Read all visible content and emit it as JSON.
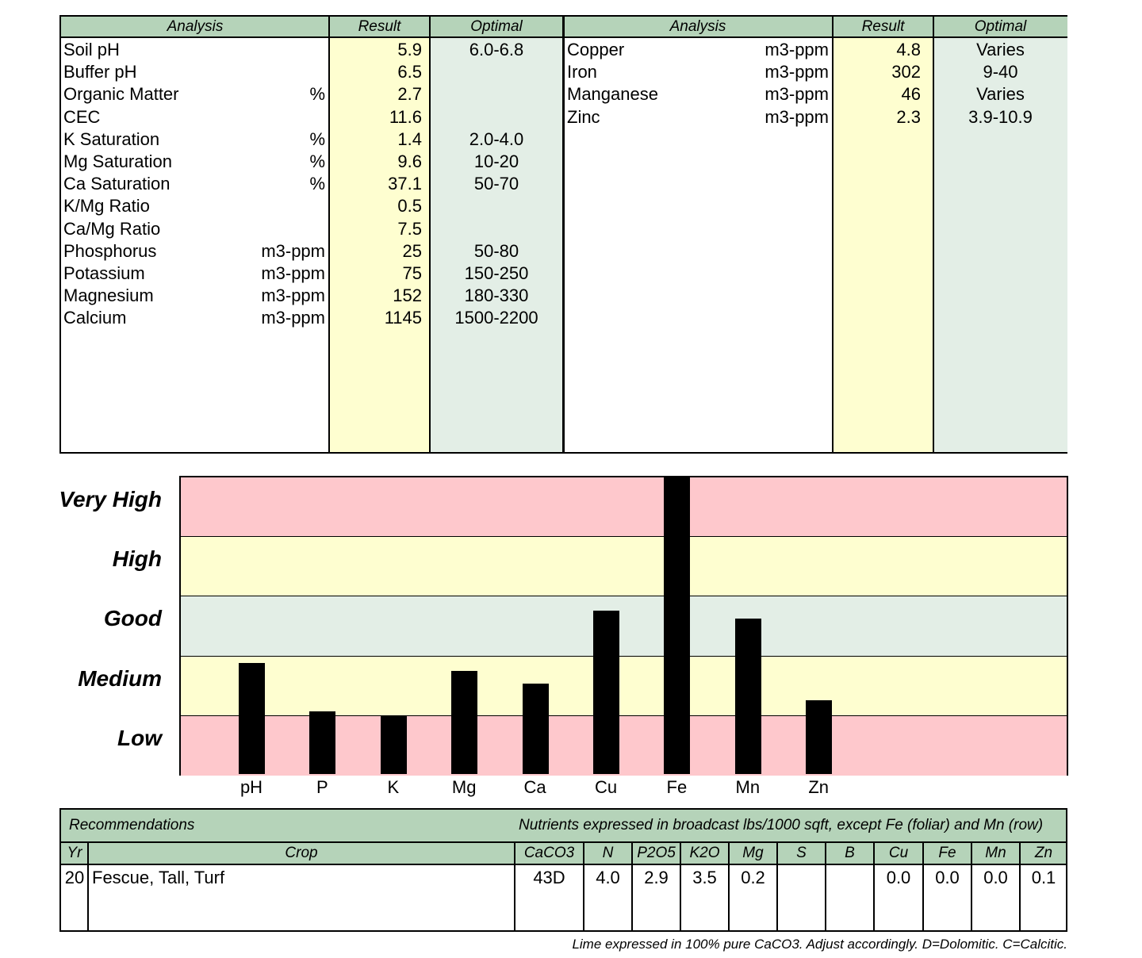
{
  "top_table": {
    "headers": {
      "analysis": "Analysis",
      "result": "Result",
      "optimal": "Optimal"
    },
    "left_rows": [
      {
        "name": "Soil pH",
        "unit": "",
        "result": "5.9",
        "optimal": "6.0-6.8"
      },
      {
        "name": "Buffer pH",
        "unit": "",
        "result": "6.5",
        "optimal": ""
      },
      {
        "name": "Organic Matter",
        "unit": "%",
        "result": "2.7",
        "optimal": ""
      },
      {
        "name": "CEC",
        "unit": "",
        "result": "11.6",
        "optimal": ""
      },
      {
        "name": "K Saturation",
        "unit": "%",
        "result": "1.4",
        "optimal": "2.0-4.0"
      },
      {
        "name": "Mg Saturation",
        "unit": "%",
        "result": "9.6",
        "optimal": "10-20"
      },
      {
        "name": "Ca Saturation",
        "unit": "%",
        "result": "37.1",
        "optimal": "50-70"
      },
      {
        "name": "K/Mg Ratio",
        "unit": "",
        "result": "0.5",
        "optimal": ""
      },
      {
        "name": "Ca/Mg Ratio",
        "unit": "",
        "result": "7.5",
        "optimal": ""
      },
      {
        "name": "Phosphorus",
        "unit": "m3-ppm",
        "result": "25",
        "optimal": "50-80"
      },
      {
        "name": "Potassium",
        "unit": "m3-ppm",
        "result": "75",
        "optimal": "150-250"
      },
      {
        "name": "Magnesium",
        "unit": "m3-ppm",
        "result": "152",
        "optimal": "180-330"
      },
      {
        "name": "Calcium",
        "unit": "m3-ppm",
        "result": "1145",
        "optimal": "1500-2200"
      }
    ],
    "right_rows": [
      {
        "name": "Copper",
        "unit": "m3-ppm",
        "result": "4.8",
        "optimal": "Varies"
      },
      {
        "name": "Iron",
        "unit": "m3-ppm",
        "result": "302",
        "optimal": "9-40"
      },
      {
        "name": "Manganese",
        "unit": "m3-ppm",
        "result": "46",
        "optimal": "Varies"
      },
      {
        "name": "Zinc",
        "unit": "m3-ppm",
        "result": "2.3",
        "optimal": "3.9-10.9"
      }
    ]
  },
  "chart_data": {
    "type": "bar",
    "levels": [
      "Very High",
      "High",
      "Good",
      "Medium",
      "Low"
    ],
    "level_colors": [
      "#fec8cc",
      "#fefed0",
      "#e3eee6",
      "#fefed0",
      "#fec8cc"
    ],
    "categories": [
      "pH",
      "P",
      "K",
      "Mg",
      "Ca",
      "Cu",
      "Fe",
      "Mn",
      "Zn"
    ],
    "values": [
      1.87,
      1.06,
      0.97,
      1.74,
      1.52,
      2.75,
      5.0,
      2.62,
      1.25
    ],
    "ylim": [
      0,
      5
    ]
  },
  "recommendations": {
    "title": "Recommendations",
    "note": "Nutrients expressed in broadcast lbs/1000 sqft, except Fe (foliar) and Mn (row)",
    "columns": [
      "Yr",
      "Crop",
      "CaCO3",
      "N",
      "P2O5",
      "K2O",
      "Mg",
      "S",
      "B",
      "Cu",
      "Fe",
      "Mn",
      "Zn"
    ],
    "rows": [
      [
        "20",
        "Fescue, Tall, Turf",
        "43D",
        "4.0",
        "2.9",
        "3.5",
        "0.2",
        "",
        "",
        "0.0",
        "0.0",
        "0.0",
        "0.1"
      ]
    ]
  },
  "footnote": "Lime expressed in 100% pure CaCO3.  Adjust accordingly.  D=Dolomitic.  C=Calcitic."
}
